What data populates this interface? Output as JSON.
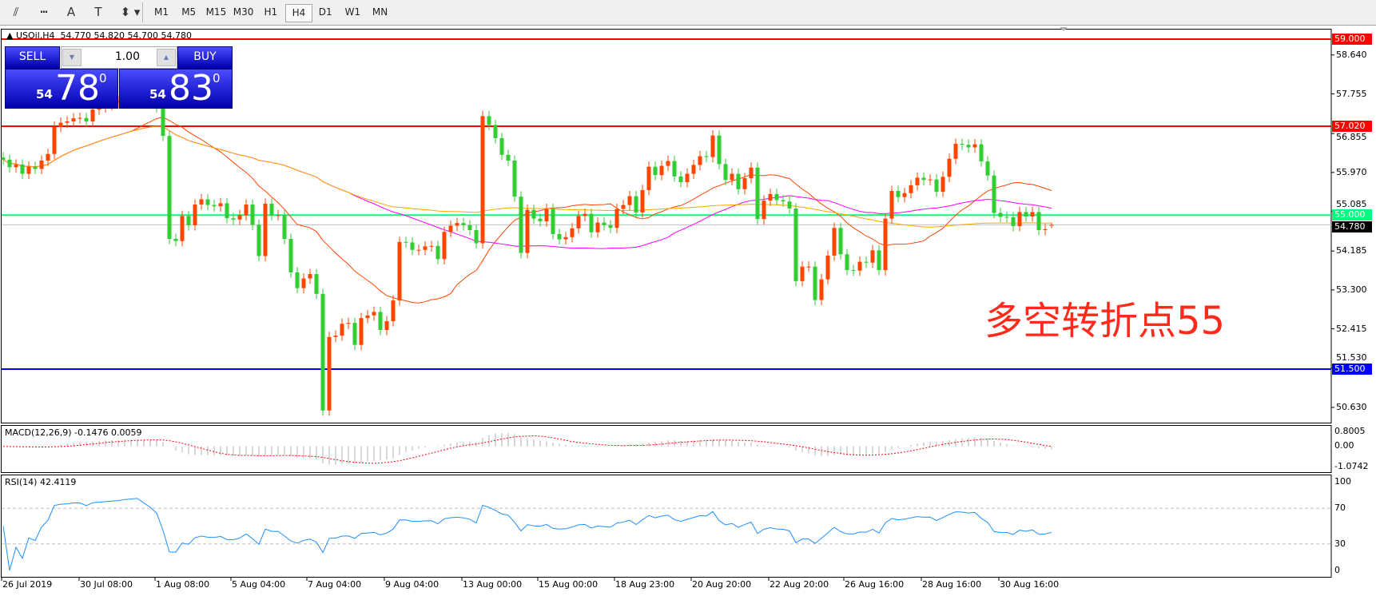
{
  "toolbar": {
    "icons": [
      "elliott-wave-icon",
      "fibonacci-fan-icon",
      "text-icon",
      "text-label-icon",
      "arrows-menu-icon"
    ],
    "icon_glyphs": [
      "⫽",
      "┅",
      "A",
      "T",
      "⬍"
    ],
    "timeframes": [
      "M1",
      "M5",
      "M15",
      "M30",
      "H1",
      "H4",
      "D1",
      "W1",
      "MN"
    ],
    "selected_timeframe": "H4"
  },
  "chart": {
    "title": "USOil,H4",
    "ohlc_text": "54.770 54.820 54.700 54.780",
    "trade_panel": {
      "sell_label": "SELL",
      "buy_label": "BUY",
      "lot": "1.00",
      "sell_big": "78",
      "sell_small": "54",
      "sell_sup": "0",
      "buy_big": "83",
      "buy_small": "54",
      "buy_sup": "0",
      "bg": "#1c1ce0"
    },
    "annotation": "多空转折点55",
    "annotation_color": "#ff2a1a"
  },
  "chart_data": {
    "type": "candlestick",
    "symbol": "USOil",
    "timeframe": "H4",
    "bull_color": "#ff4500",
    "bear_color": "#32cd32",
    "ylim": [
      50.3,
      59.3
    ],
    "y_ticks": [
      "58.640",
      "57.755",
      "56.855",
      "55.970",
      "55.085",
      "54.185",
      "53.300",
      "52.415",
      "51.530",
      "50.630"
    ],
    "x_labels": [
      "26 Jul 2019",
      "30 Jul 08:00",
      "1 Aug 08:00",
      "5 Aug 04:00",
      "7 Aug 04:00",
      "9 Aug 04:00",
      "13 Aug 00:00",
      "15 Aug 00:00",
      "18 Aug 23:00",
      "20 Aug 20:00",
      "22 Aug 20:00",
      "26 Aug 16:00",
      "28 Aug 16:00",
      "30 Aug 16:00"
    ],
    "closes": [
      56.26,
      56.09,
      56.15,
      55.94,
      56.1,
      56.05,
      56.24,
      56.39,
      57.01,
      57.1,
      57.13,
      57.2,
      57.21,
      57.13,
      57.4,
      57.45,
      57.5,
      57.55,
      57.6,
      57.7,
      57.75,
      57.8,
      57.7,
      57.6,
      57.45,
      56.8,
      54.46,
      54.41,
      54.98,
      54.77,
      55.24,
      55.36,
      55.23,
      55.2,
      55.27,
      54.93,
      54.9,
      55.0,
      55.24,
      54.78,
      54.07,
      55.26,
      55.0,
      55.0,
      54.46,
      53.7,
      53.34,
      53.56,
      53.66,
      53.21,
      50.56,
      52.23,
      52.26,
      52.53,
      52.55,
      52.05,
      52.66,
      52.72,
      52.8,
      52.39,
      52.59,
      53.06,
      54.39,
      54.38,
      54.21,
      54.21,
      54.29,
      54.3,
      54.0,
      54.62,
      54.76,
      54.82,
      54.77,
      54.66,
      54.36,
      57.25,
      57.05,
      56.75,
      56.37,
      56.24,
      55.42,
      54.14,
      55.12,
      54.92,
      54.86,
      55.14,
      54.57,
      54.45,
      54.5,
      54.7,
      54.98,
      55.03,
      54.61,
      54.83,
      54.77,
      54.71,
      55.14,
      55.23,
      55.43,
      55.06,
      55.57,
      56.1,
      55.91,
      56.12,
      56.23,
      55.88,
      55.75,
      55.94,
      56.14,
      56.34,
      56.32,
      56.81,
      56.16,
      55.8,
      55.94,
      55.59,
      55.84,
      56.08,
      54.91,
      55.33,
      55.48,
      55.34,
      55.31,
      55.15,
      53.5,
      53.83,
      53.83,
      53.07,
      53.54,
      54.08,
      54.71,
      54.11,
      53.75,
      53.74,
      53.94,
      53.92,
      54.2,
      53.75,
      54.92,
      55.55,
      55.41,
      55.5,
      55.68,
      55.85,
      55.8,
      55.81,
      55.53,
      55.87,
      56.28,
      56.62,
      56.6,
      56.54,
      56.61,
      56.22,
      55.9,
      55.05,
      54.96,
      54.95,
      54.75,
      55.07,
      54.97,
      55.07,
      54.66,
      54.68,
      54.78
    ],
    "last": {
      "open": 54.77,
      "high": 54.82,
      "low": 54.7,
      "close": 54.78
    },
    "horizontal_lines": [
      {
        "price": 59.0,
        "label": "59.000",
        "color": "#ff0000"
      },
      {
        "price": 57.02,
        "label": "57.020",
        "color": "#ff0000"
      },
      {
        "price": 55.0,
        "label": "55.000",
        "color": "#00ff7f"
      },
      {
        "price": 51.5,
        "label": "51.500",
        "color": "#0000ff"
      }
    ],
    "bid_line": {
      "price": 54.78,
      "label": "54.780",
      "color": "#c0c0c0"
    },
    "moving_averages": [
      {
        "color": "#ff4500"
      },
      {
        "color": "#ff00ff"
      },
      {
        "color": "#ffa500"
      }
    ],
    "macd": {
      "label": "MACD(12,26,9) -0.1476 0.0059",
      "ticks": [
        "0.8005",
        "0.00",
        "-1.0742"
      ],
      "ylim": [
        -1.0742,
        0.8005
      ],
      "signal_color": "#ff0000",
      "hist_color": "#b0b0b0"
    },
    "rsi": {
      "label": "RSI(14) 42.4119",
      "ticks": [
        "100",
        "70",
        "30",
        "0"
      ],
      "levels": [
        70,
        30
      ],
      "color": "#1e90ff"
    }
  }
}
